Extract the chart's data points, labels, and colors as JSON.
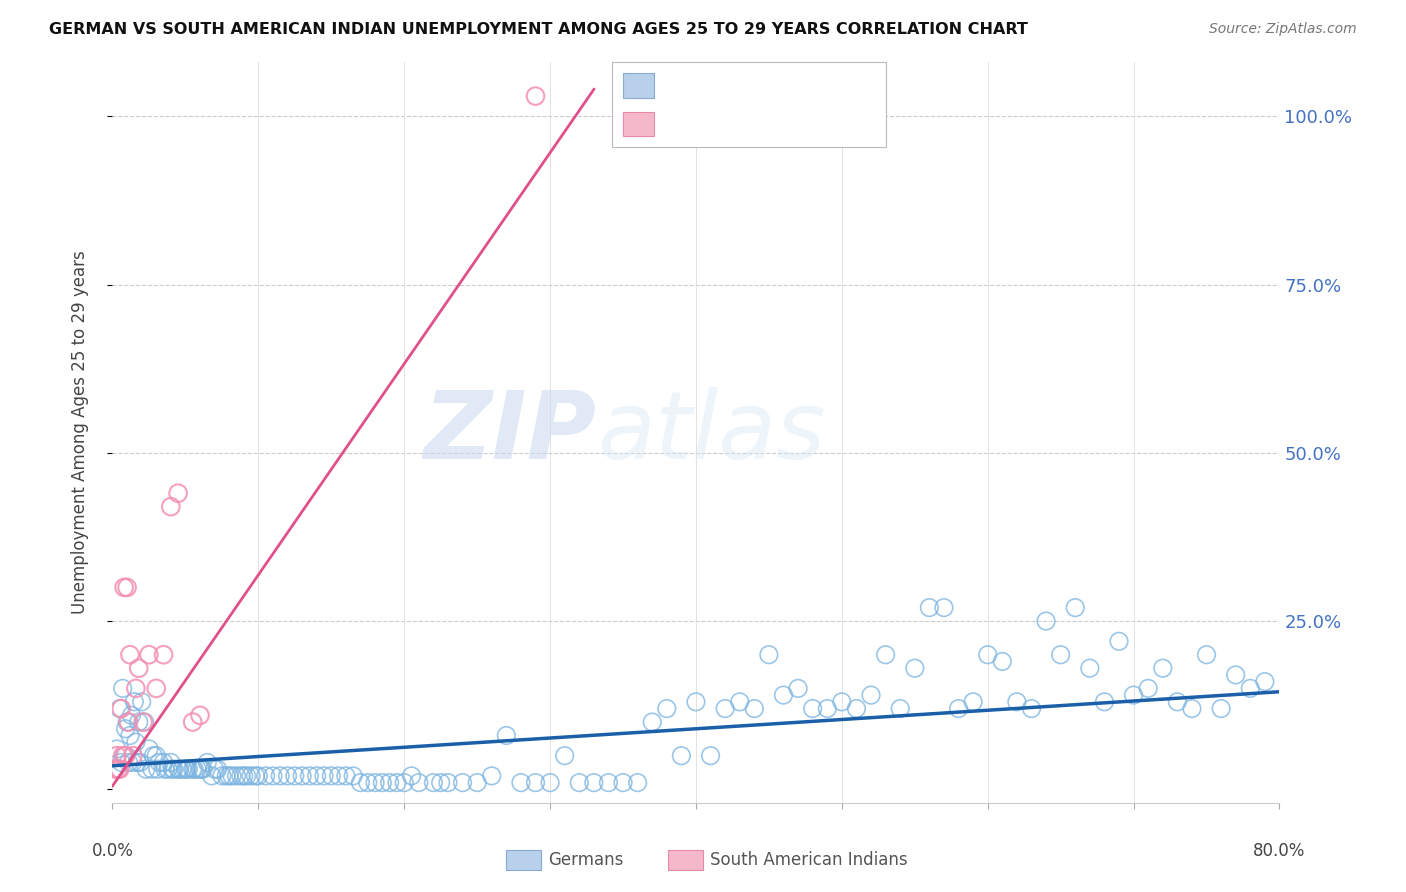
{
  "title": "GERMAN VS SOUTH AMERICAN INDIAN UNEMPLOYMENT AMONG AGES 25 TO 29 YEARS CORRELATION CHART",
  "source": "Source: ZipAtlas.com",
  "ylabel": "Unemployment Among Ages 25 to 29 years",
  "watermark_zip": "ZIP",
  "watermark_atlas": "atlas",
  "blue_color": "#7ab3e0",
  "pink_color": "#f48fb1",
  "trend_blue": "#1a5fa8",
  "trend_pink": "#e0508a",
  "xlim": [
    0.0,
    0.8
  ],
  "ylim": [
    -0.02,
    1.08
  ],
  "blue_scatter_x": [
    0.005,
    0.007,
    0.009,
    0.01,
    0.012,
    0.013,
    0.015,
    0.016,
    0.018,
    0.02,
    0.022,
    0.025,
    0.028,
    0.03,
    0.032,
    0.035,
    0.038,
    0.04,
    0.042,
    0.045,
    0.048,
    0.05,
    0.052,
    0.055,
    0.058,
    0.06,
    0.062,
    0.065,
    0.068,
    0.07,
    0.072,
    0.075,
    0.078,
    0.08,
    0.082,
    0.085,
    0.088,
    0.09,
    0.092,
    0.095,
    0.098,
    0.1,
    0.105,
    0.11,
    0.115,
    0.12,
    0.125,
    0.13,
    0.135,
    0.14,
    0.145,
    0.15,
    0.155,
    0.16,
    0.165,
    0.17,
    0.175,
    0.18,
    0.185,
    0.19,
    0.195,
    0.2,
    0.205,
    0.21,
    0.22,
    0.225,
    0.23,
    0.24,
    0.25,
    0.26,
    0.27,
    0.28,
    0.29,
    0.3,
    0.31,
    0.32,
    0.33,
    0.34,
    0.35,
    0.36,
    0.37,
    0.38,
    0.39,
    0.4,
    0.41,
    0.42,
    0.43,
    0.44,
    0.45,
    0.46,
    0.47,
    0.48,
    0.49,
    0.5,
    0.51,
    0.52,
    0.53,
    0.54,
    0.55,
    0.56,
    0.57,
    0.58,
    0.59,
    0.6,
    0.61,
    0.62,
    0.63,
    0.64,
    0.65,
    0.66,
    0.67,
    0.68,
    0.69,
    0.7,
    0.71,
    0.72,
    0.73,
    0.74,
    0.75,
    0.76,
    0.77,
    0.78,
    0.79,
    0.003,
    0.006,
    0.008,
    0.011,
    0.014,
    0.017,
    0.019,
    0.023,
    0.027,
    0.031,
    0.036,
    0.041,
    0.046,
    0.051,
    0.056,
    0.061
  ],
  "blue_scatter_y": [
    0.12,
    0.15,
    0.09,
    0.1,
    0.08,
    0.11,
    0.13,
    0.07,
    0.1,
    0.13,
    0.1,
    0.06,
    0.05,
    0.05,
    0.04,
    0.04,
    0.03,
    0.04,
    0.03,
    0.03,
    0.03,
    0.03,
    0.03,
    0.03,
    0.03,
    0.03,
    0.03,
    0.04,
    0.02,
    0.03,
    0.03,
    0.02,
    0.02,
    0.02,
    0.02,
    0.02,
    0.02,
    0.02,
    0.02,
    0.02,
    0.02,
    0.02,
    0.02,
    0.02,
    0.02,
    0.02,
    0.02,
    0.02,
    0.02,
    0.02,
    0.02,
    0.02,
    0.02,
    0.02,
    0.02,
    0.01,
    0.01,
    0.01,
    0.01,
    0.01,
    0.01,
    0.01,
    0.02,
    0.01,
    0.01,
    0.01,
    0.01,
    0.01,
    0.01,
    0.02,
    0.08,
    0.01,
    0.01,
    0.01,
    0.05,
    0.01,
    0.01,
    0.01,
    0.01,
    0.01,
    0.1,
    0.12,
    0.05,
    0.13,
    0.05,
    0.12,
    0.13,
    0.12,
    0.2,
    0.14,
    0.15,
    0.12,
    0.12,
    0.13,
    0.12,
    0.14,
    0.2,
    0.12,
    0.18,
    0.27,
    0.27,
    0.12,
    0.13,
    0.2,
    0.19,
    0.13,
    0.12,
    0.25,
    0.2,
    0.27,
    0.18,
    0.13,
    0.22,
    0.14,
    0.15,
    0.18,
    0.13,
    0.12,
    0.2,
    0.12,
    0.17,
    0.15,
    0.16,
    0.06,
    0.04,
    0.05,
    0.04,
    0.04,
    0.04,
    0.04,
    0.03,
    0.03,
    0.03,
    0.03,
    0.03,
    0.03,
    0.03,
    0.03,
    0.03
  ],
  "pink_scatter_x": [
    0.004,
    0.005,
    0.006,
    0.007,
    0.008,
    0.009,
    0.01,
    0.012,
    0.014,
    0.016,
    0.018,
    0.021,
    0.025,
    0.03,
    0.035,
    0.04,
    0.045,
    0.055,
    0.06,
    0.003,
    0.002,
    0.011,
    0.29
  ],
  "pink_scatter_y": [
    0.03,
    0.03,
    0.12,
    0.05,
    0.3,
    0.05,
    0.3,
    0.2,
    0.05,
    0.15,
    0.18,
    0.1,
    0.2,
    0.15,
    0.2,
    0.42,
    0.44,
    0.1,
    0.11,
    0.05,
    0.03,
    0.1,
    1.03
  ],
  "blue_trend_x": [
    0.0,
    0.8
  ],
  "blue_trend_y": [
    0.035,
    0.145
  ],
  "pink_trend_x": [
    0.0,
    0.33
  ],
  "pink_trend_y": [
    0.005,
    1.04
  ]
}
